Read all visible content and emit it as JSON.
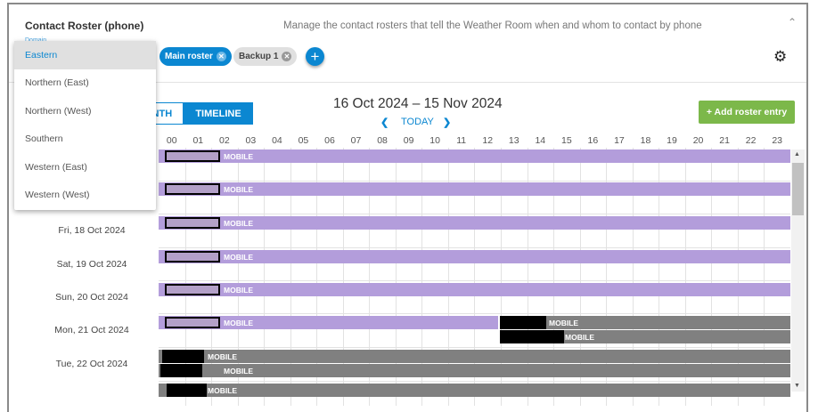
{
  "header": {
    "title": "Contact Roster (phone)",
    "description": "Manage the contact rosters that tell the Weather Room when and whom to contact by phone",
    "domain_label": "Domain"
  },
  "rosters": [
    {
      "label": "Main roster",
      "active": true
    },
    {
      "label": "Backup 1",
      "active": false
    }
  ],
  "view_toggle": {
    "month": "MONTH",
    "timeline": "TIMELINE",
    "selected": "TIMELINE"
  },
  "calendar": {
    "range": "16 Oct 2024 – 15 Nov 2024",
    "today": "TODAY",
    "add_entry": "+ Add roster entry"
  },
  "hours": [
    "00",
    "01",
    "02",
    "03",
    "04",
    "05",
    "06",
    "07",
    "08",
    "09",
    "10",
    "11",
    "12",
    "13",
    "14",
    "15",
    "16",
    "17",
    "18",
    "19",
    "20",
    "21",
    "22",
    "23"
  ],
  "days": [
    "",
    "",
    "Fri, 18 Oct 2024",
    "Sat, 19 Oct 2024",
    "Sun, 20 Oct 2024",
    "Mon, 21 Oct 2024",
    "Tue, 22 Oct 2024",
    ""
  ],
  "entry_label": "MOBILE",
  "dropdown": {
    "options": [
      "Eastern",
      "Northern (East)",
      "Northern (West)",
      "Southern",
      "Western (East)",
      "Western (West)"
    ],
    "selected": "Eastern"
  },
  "colors": {
    "accent": "#0b87d1",
    "main_roster": "#b39ddb",
    "backup_roster": "#808080",
    "add_button": "#7cb84a"
  }
}
